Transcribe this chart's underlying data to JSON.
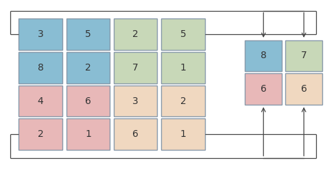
{
  "grid_values": [
    [
      3,
      5,
      2,
      5
    ],
    [
      8,
      2,
      7,
      1
    ],
    [
      4,
      6,
      3,
      2
    ],
    [
      2,
      1,
      6,
      1
    ]
  ],
  "result_values": [
    [
      8,
      7
    ],
    [
      6,
      6
    ]
  ],
  "quadrant_colors": [
    [
      "blue",
      "blue",
      "green",
      "green"
    ],
    [
      "blue",
      "blue",
      "green",
      "green"
    ],
    [
      "pink",
      "pink",
      "peach",
      "peach"
    ],
    [
      "pink",
      "pink",
      "peach",
      "peach"
    ]
  ],
  "result_colors": [
    [
      "blue",
      "green"
    ],
    [
      "pink",
      "peach"
    ]
  ],
  "color_map": {
    "blue": "#89bdd3",
    "green": "#c8d8b8",
    "pink": "#e8b8b8",
    "peach": "#f0d8c0"
  },
  "bg_color": "#ffffff",
  "cell_edge_color": "#8899aa",
  "line_color": "#444444",
  "font_size": 10,
  "figsize": [
    4.74,
    2.63
  ],
  "dpi": 100
}
